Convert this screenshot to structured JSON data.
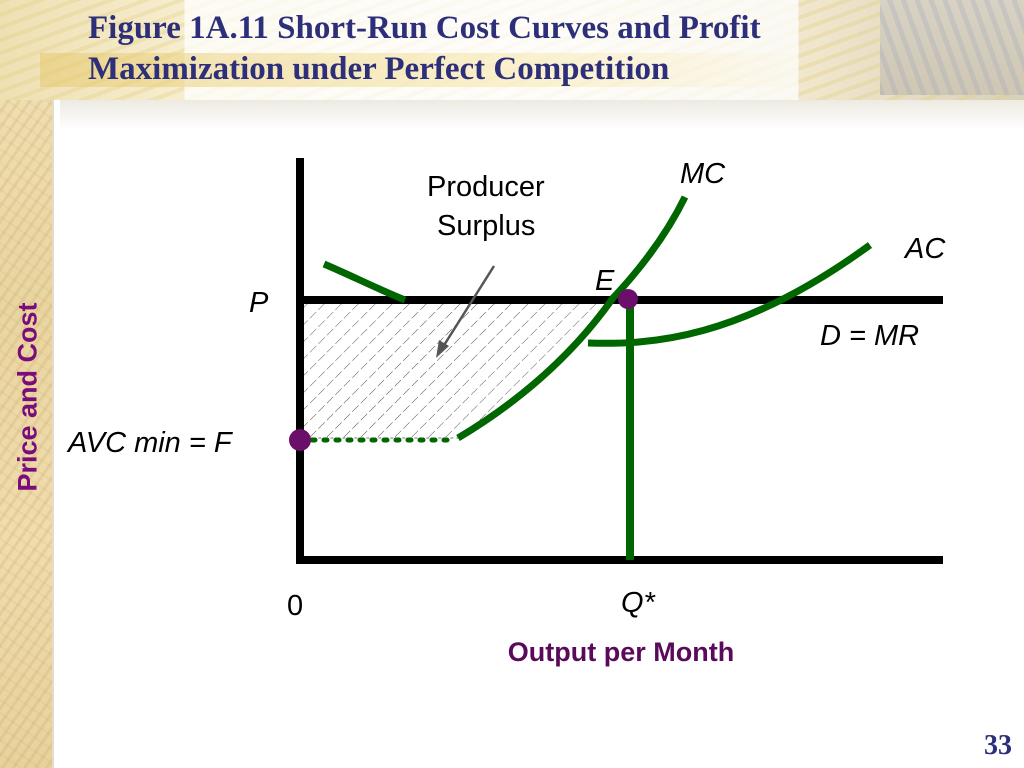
{
  "slide": {
    "title": "Figure 1A.11 Short-Run Cost Curves and Profit Maximization under Perfect Competition",
    "slide_number": "33"
  },
  "diagram": {
    "y_axis_title": "Price and Cost",
    "x_axis_title": "Output per Month",
    "labels": {
      "mc": "MC",
      "ac": "AC",
      "demand": "D = MR",
      "equilibrium": "E",
      "price": "P",
      "avc_min": "AVC min = F",
      "origin": "0",
      "quantity": "Q*",
      "producer_surplus_line1": "Producer",
      "producer_surplus_line2": "Surplus"
    }
  },
  "colors": {
    "title": "#2e2f7a",
    "axis_title": "#7b0c7b",
    "curve": "#006600",
    "point": "#6b0f6b",
    "axis": "#000000"
  }
}
